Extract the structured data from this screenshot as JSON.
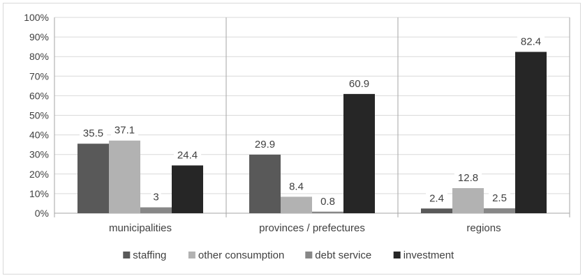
{
  "chart_data": {
    "type": "bar",
    "title": "",
    "xlabel": "",
    "ylabel": "",
    "ylim": [
      0,
      100
    ],
    "ytick_step": 10,
    "ytick_suffix": "%",
    "grid": true,
    "legend_placement": "bottom",
    "categories": [
      "municipalities",
      "provinces / prefectures",
      "regions"
    ],
    "series": [
      {
        "name": "staffing",
        "color": "#595959",
        "values": [
          35.5,
          29.9,
          2.4
        ],
        "labels": [
          "35.5",
          "29.9",
          "2.4"
        ]
      },
      {
        "name": "other consumption",
        "color": "#b2b2b2",
        "values": [
          37.1,
          8.4,
          12.8
        ],
        "labels": [
          "37.1",
          "8.4",
          "12.8"
        ]
      },
      {
        "name": "debt service",
        "color": "#878787",
        "values": [
          3,
          0.8,
          2.5
        ],
        "labels": [
          "3",
          "0.8",
          "2.5"
        ]
      },
      {
        "name": "investment",
        "color": "#262626",
        "values": [
          24.4,
          60.9,
          82.4
        ],
        "labels": [
          "24.4",
          "60.9",
          "82.4"
        ]
      }
    ]
  }
}
